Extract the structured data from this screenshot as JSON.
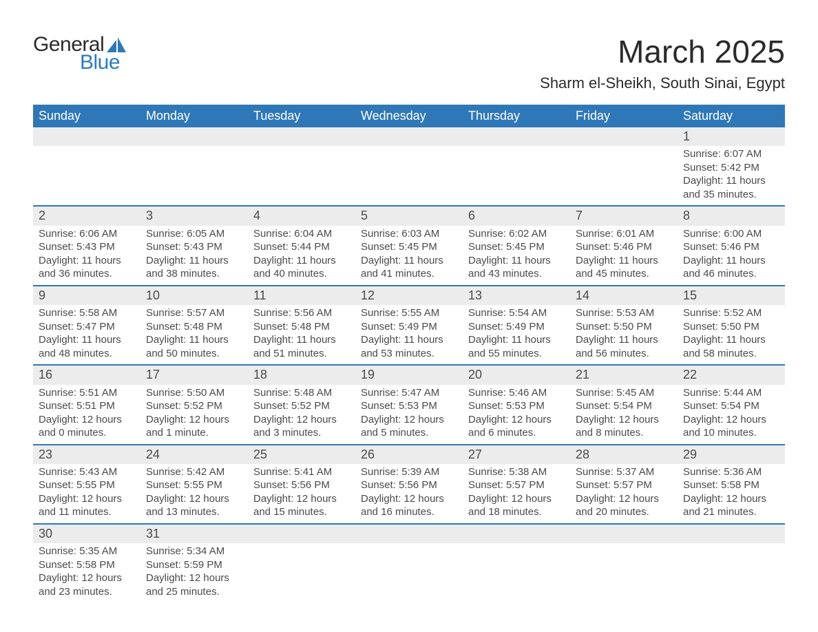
{
  "brand": {
    "text_general": "General",
    "text_blue": "Blue",
    "sail_color": "#2f78b7"
  },
  "title": {
    "month": "March 2025",
    "location": "Sharm el-Sheikh, South Sinai, Egypt",
    "title_fontsize": 46,
    "location_fontsize": 22,
    "title_color": "#2b2b2b"
  },
  "calendar": {
    "header_bg": "#2f78b7",
    "header_fg": "#ffffff",
    "daynum_bg": "#ececec",
    "divider_color": "#2f78b7",
    "text_color": "#4a4a4a",
    "cell_fontsize": 15,
    "daynum_fontsize": 18,
    "columns": [
      "Sunday",
      "Monday",
      "Tuesday",
      "Wednesday",
      "Thursday",
      "Friday",
      "Saturday"
    ],
    "weeks": [
      [
        null,
        null,
        null,
        null,
        null,
        null,
        {
          "day": "1",
          "sunrise": "Sunrise: 6:07 AM",
          "sunset": "Sunset: 5:42 PM",
          "dl1": "Daylight: 11 hours",
          "dl2": "and 35 minutes."
        }
      ],
      [
        {
          "day": "2",
          "sunrise": "Sunrise: 6:06 AM",
          "sunset": "Sunset: 5:43 PM",
          "dl1": "Daylight: 11 hours",
          "dl2": "and 36 minutes."
        },
        {
          "day": "3",
          "sunrise": "Sunrise: 6:05 AM",
          "sunset": "Sunset: 5:43 PM",
          "dl1": "Daylight: 11 hours",
          "dl2": "and 38 minutes."
        },
        {
          "day": "4",
          "sunrise": "Sunrise: 6:04 AM",
          "sunset": "Sunset: 5:44 PM",
          "dl1": "Daylight: 11 hours",
          "dl2": "and 40 minutes."
        },
        {
          "day": "5",
          "sunrise": "Sunrise: 6:03 AM",
          "sunset": "Sunset: 5:45 PM",
          "dl1": "Daylight: 11 hours",
          "dl2": "and 41 minutes."
        },
        {
          "day": "6",
          "sunrise": "Sunrise: 6:02 AM",
          "sunset": "Sunset: 5:45 PM",
          "dl1": "Daylight: 11 hours",
          "dl2": "and 43 minutes."
        },
        {
          "day": "7",
          "sunrise": "Sunrise: 6:01 AM",
          "sunset": "Sunset: 5:46 PM",
          "dl1": "Daylight: 11 hours",
          "dl2": "and 45 minutes."
        },
        {
          "day": "8",
          "sunrise": "Sunrise: 6:00 AM",
          "sunset": "Sunset: 5:46 PM",
          "dl1": "Daylight: 11 hours",
          "dl2": "and 46 minutes."
        }
      ],
      [
        {
          "day": "9",
          "sunrise": "Sunrise: 5:58 AM",
          "sunset": "Sunset: 5:47 PM",
          "dl1": "Daylight: 11 hours",
          "dl2": "and 48 minutes."
        },
        {
          "day": "10",
          "sunrise": "Sunrise: 5:57 AM",
          "sunset": "Sunset: 5:48 PM",
          "dl1": "Daylight: 11 hours",
          "dl2": "and 50 minutes."
        },
        {
          "day": "11",
          "sunrise": "Sunrise: 5:56 AM",
          "sunset": "Sunset: 5:48 PM",
          "dl1": "Daylight: 11 hours",
          "dl2": "and 51 minutes."
        },
        {
          "day": "12",
          "sunrise": "Sunrise: 5:55 AM",
          "sunset": "Sunset: 5:49 PM",
          "dl1": "Daylight: 11 hours",
          "dl2": "and 53 minutes."
        },
        {
          "day": "13",
          "sunrise": "Sunrise: 5:54 AM",
          "sunset": "Sunset: 5:49 PM",
          "dl1": "Daylight: 11 hours",
          "dl2": "and 55 minutes."
        },
        {
          "day": "14",
          "sunrise": "Sunrise: 5:53 AM",
          "sunset": "Sunset: 5:50 PM",
          "dl1": "Daylight: 11 hours",
          "dl2": "and 56 minutes."
        },
        {
          "day": "15",
          "sunrise": "Sunrise: 5:52 AM",
          "sunset": "Sunset: 5:50 PM",
          "dl1": "Daylight: 11 hours",
          "dl2": "and 58 minutes."
        }
      ],
      [
        {
          "day": "16",
          "sunrise": "Sunrise: 5:51 AM",
          "sunset": "Sunset: 5:51 PM",
          "dl1": "Daylight: 12 hours",
          "dl2": "and 0 minutes."
        },
        {
          "day": "17",
          "sunrise": "Sunrise: 5:50 AM",
          "sunset": "Sunset: 5:52 PM",
          "dl1": "Daylight: 12 hours",
          "dl2": "and 1 minute."
        },
        {
          "day": "18",
          "sunrise": "Sunrise: 5:48 AM",
          "sunset": "Sunset: 5:52 PM",
          "dl1": "Daylight: 12 hours",
          "dl2": "and 3 minutes."
        },
        {
          "day": "19",
          "sunrise": "Sunrise: 5:47 AM",
          "sunset": "Sunset: 5:53 PM",
          "dl1": "Daylight: 12 hours",
          "dl2": "and 5 minutes."
        },
        {
          "day": "20",
          "sunrise": "Sunrise: 5:46 AM",
          "sunset": "Sunset: 5:53 PM",
          "dl1": "Daylight: 12 hours",
          "dl2": "and 6 minutes."
        },
        {
          "day": "21",
          "sunrise": "Sunrise: 5:45 AM",
          "sunset": "Sunset: 5:54 PM",
          "dl1": "Daylight: 12 hours",
          "dl2": "and 8 minutes."
        },
        {
          "day": "22",
          "sunrise": "Sunrise: 5:44 AM",
          "sunset": "Sunset: 5:54 PM",
          "dl1": "Daylight: 12 hours",
          "dl2": "and 10 minutes."
        }
      ],
      [
        {
          "day": "23",
          "sunrise": "Sunrise: 5:43 AM",
          "sunset": "Sunset: 5:55 PM",
          "dl1": "Daylight: 12 hours",
          "dl2": "and 11 minutes."
        },
        {
          "day": "24",
          "sunrise": "Sunrise: 5:42 AM",
          "sunset": "Sunset: 5:55 PM",
          "dl1": "Daylight: 12 hours",
          "dl2": "and 13 minutes."
        },
        {
          "day": "25",
          "sunrise": "Sunrise: 5:41 AM",
          "sunset": "Sunset: 5:56 PM",
          "dl1": "Daylight: 12 hours",
          "dl2": "and 15 minutes."
        },
        {
          "day": "26",
          "sunrise": "Sunrise: 5:39 AM",
          "sunset": "Sunset: 5:56 PM",
          "dl1": "Daylight: 12 hours",
          "dl2": "and 16 minutes."
        },
        {
          "day": "27",
          "sunrise": "Sunrise: 5:38 AM",
          "sunset": "Sunset: 5:57 PM",
          "dl1": "Daylight: 12 hours",
          "dl2": "and 18 minutes."
        },
        {
          "day": "28",
          "sunrise": "Sunrise: 5:37 AM",
          "sunset": "Sunset: 5:57 PM",
          "dl1": "Daylight: 12 hours",
          "dl2": "and 20 minutes."
        },
        {
          "day": "29",
          "sunrise": "Sunrise: 5:36 AM",
          "sunset": "Sunset: 5:58 PM",
          "dl1": "Daylight: 12 hours",
          "dl2": "and 21 minutes."
        }
      ],
      [
        {
          "day": "30",
          "sunrise": "Sunrise: 5:35 AM",
          "sunset": "Sunset: 5:58 PM",
          "dl1": "Daylight: 12 hours",
          "dl2": "and 23 minutes."
        },
        {
          "day": "31",
          "sunrise": "Sunrise: 5:34 AM",
          "sunset": "Sunset: 5:59 PM",
          "dl1": "Daylight: 12 hours",
          "dl2": "and 25 minutes."
        },
        null,
        null,
        null,
        null,
        null
      ]
    ]
  }
}
